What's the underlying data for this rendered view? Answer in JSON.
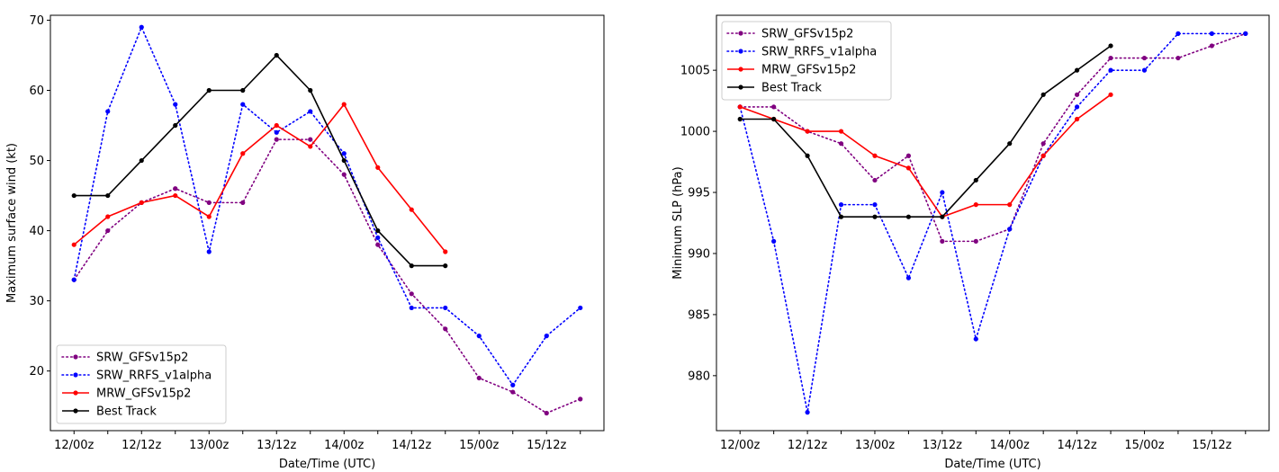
{
  "chart_data": [
    {
      "type": "line",
      "xlabel": "Date/Time (UTC)",
      "ylabel": "Maximum surface wind (kt)",
      "x_tick_labels": [
        "12/00z",
        "",
        "12/12z",
        "",
        "13/00z",
        "",
        "13/12z",
        "",
        "14/00z",
        "",
        "14/12z",
        "",
        "15/00z",
        "",
        "15/12z",
        ""
      ],
      "xlim": [
        -0.7,
        15.7
      ],
      "ylim": [
        11.5,
        70.7
      ],
      "y_ticks": [
        20,
        30,
        40,
        50,
        60,
        70
      ],
      "legend_position": "lower-left",
      "series": [
        {
          "name": "SRW_GFSv15p2",
          "color": "#800080",
          "style": "dotted",
          "values": [
            33,
            40,
            44,
            46,
            44,
            44,
            53,
            53,
            48,
            38,
            31,
            26,
            19,
            17,
            14,
            16
          ]
        },
        {
          "name": "SRW_RRFS_v1alpha",
          "color": "#0000ff",
          "style": "dotted",
          "values": [
            33,
            57,
            69,
            58,
            37,
            58,
            54,
            57,
            51,
            39,
            29,
            29,
            25,
            18,
            25,
            29
          ]
        },
        {
          "name": "MRW_GFSv15p2",
          "color": "#ff0000",
          "style": "solid",
          "values": [
            38,
            42,
            44,
            45,
            42,
            51,
            55,
            52,
            58,
            49,
            43,
            37
          ]
        },
        {
          "name": "Best Track",
          "color": "#000000",
          "style": "solid",
          "values": [
            45,
            45,
            50,
            55,
            60,
            60,
            65,
            60,
            50,
            40,
            35,
            35
          ]
        }
      ]
    },
    {
      "type": "line",
      "xlabel": "Date/Time (UTC)",
      "ylabel": "Minimum SLP (hPa)",
      "x_tick_labels": [
        "12/00z",
        "",
        "12/12z",
        "",
        "13/00z",
        "",
        "13/12z",
        "",
        "14/00z",
        "",
        "14/12z",
        "",
        "15/00z",
        "",
        "15/12z",
        ""
      ],
      "xlim": [
        -0.7,
        15.7
      ],
      "ylim": [
        975.5,
        1009.5
      ],
      "y_ticks": [
        980,
        985,
        990,
        995,
        1000,
        1005
      ],
      "legend_position": "upper-left",
      "series": [
        {
          "name": "SRW_GFSv15p2",
          "color": "#800080",
          "style": "dotted",
          "values": [
            1002,
            1002,
            1000,
            999,
            996,
            998,
            991,
            991,
            992,
            999,
            1003,
            1006,
            1006,
            1006,
            1007,
            1008
          ]
        },
        {
          "name": "SRW_RRFS_v1alpha",
          "color": "#0000ff",
          "style": "dotted",
          "values": [
            1002,
            991,
            977,
            994,
            994,
            988,
            995,
            983,
            992,
            998,
            1002,
            1005,
            1005,
            1008,
            1008,
            1008
          ]
        },
        {
          "name": "MRW_GFSv15p2",
          "color": "#ff0000",
          "style": "solid",
          "values": [
            1002,
            1001,
            1000,
            1000,
            998,
            997,
            993,
            994,
            994,
            998,
            1001,
            1003
          ]
        },
        {
          "name": "Best Track",
          "color": "#000000",
          "style": "solid",
          "values": [
            1001,
            1001,
            998,
            993,
            993,
            993,
            993,
            996,
            999,
            1003,
            1005,
            1007
          ]
        }
      ]
    }
  ]
}
